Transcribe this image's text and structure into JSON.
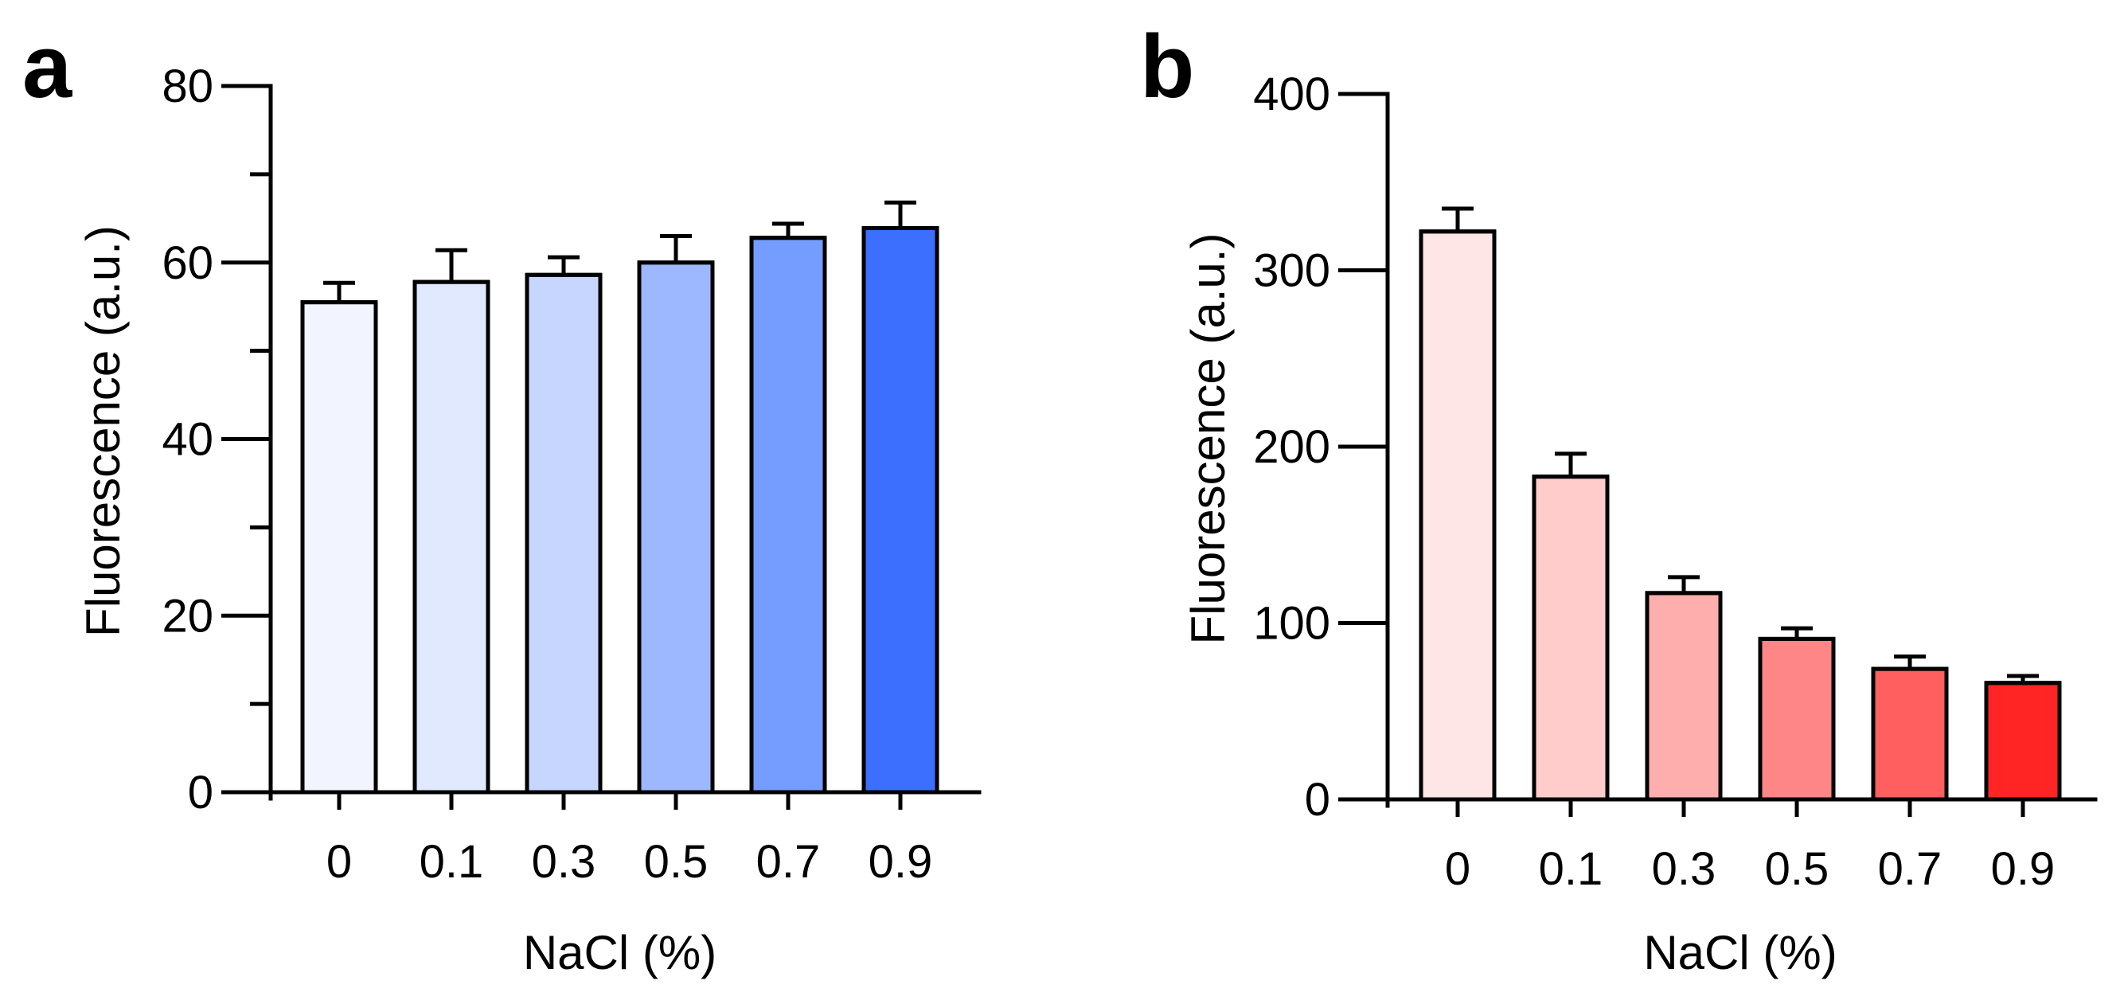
{
  "chart_data": [
    {
      "type": "bar",
      "panel_label": "a",
      "categories": [
        "0",
        "0.1",
        "0.3",
        "0.5",
        "0.7",
        "0.9"
      ],
      "series": [
        {
          "values": [
            55.5,
            57.8,
            58.6,
            60.0,
            62.8,
            63.9
          ],
          "errors": [
            2.2,
            3.6,
            2.0,
            3.0,
            1.6,
            2.9
          ],
          "colors": [
            "#f2f5ff",
            "#e1e9ff",
            "#c6d6ff",
            "#9db8ff",
            "#759dff",
            "#3d6fff"
          ]
        }
      ],
      "xlabel": "NaCl (%)",
      "ylabel": "Fluorescence (a.u.)",
      "ylim": [
        0,
        80
      ],
      "yticks_major": [
        0,
        20,
        40,
        60,
        80
      ],
      "yticks_minor": [
        10,
        30,
        50,
        70
      ],
      "grid": false,
      "legend": "none"
    },
    {
      "type": "bar",
      "panel_label": "b",
      "categories": [
        "0",
        "0.1",
        "0.3",
        "0.5",
        "0.7",
        "0.9"
      ],
      "series": [
        {
          "values": [
            322,
            183,
            117,
            91,
            74,
            66
          ],
          "errors": [
            13,
            13,
            9,
            6,
            7,
            4
          ],
          "colors": [
            "#ffe6e6",
            "#ffcbcb",
            "#ffaeae",
            "#ff8686",
            "#ff5f5f",
            "#ff2525"
          ]
        }
      ],
      "xlabel": "NaCl (%)",
      "ylabel": "Fluorescence (a.u.)",
      "ylim": [
        0,
        400
      ],
      "yticks_major": [
        0,
        100,
        200,
        300,
        400
      ],
      "yticks_minor": [],
      "grid": false,
      "legend": "none"
    }
  ]
}
